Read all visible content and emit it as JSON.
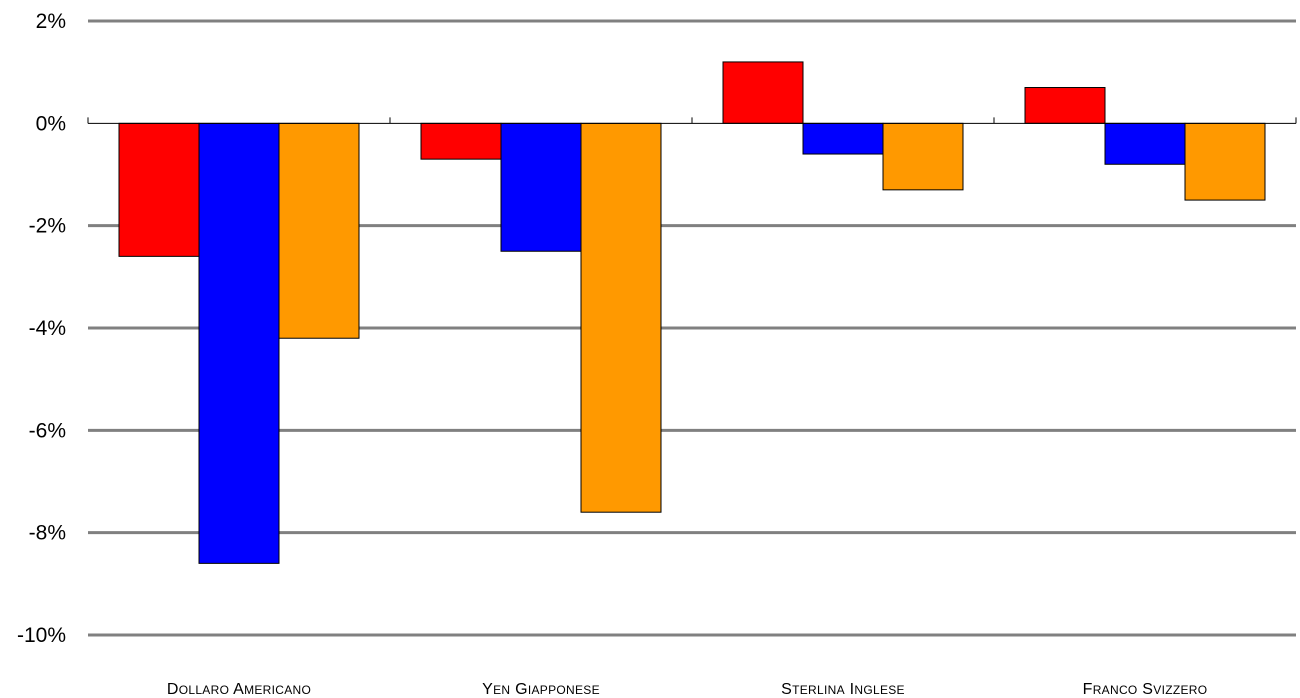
{
  "chart_data": {
    "type": "bar",
    "title": "",
    "xlabel": "",
    "ylabel": "",
    "categories": [
      "Dollaro Americano",
      "Yen Giapponese",
      "Sterlina Inglese",
      "Franco Svizzero"
    ],
    "series": [
      {
        "color": "#ff0000",
        "values": [
          -2.6,
          -0.7,
          1.2,
          0.7
        ]
      },
      {
        "color": "#0000ff",
        "values": [
          -8.6,
          -2.5,
          -0.6,
          -0.8
        ]
      },
      {
        "color": "#ff9900",
        "values": [
          -4.2,
          -7.6,
          -1.3,
          -1.5
        ]
      }
    ],
    "ylim": [
      -10,
      2
    ],
    "yticks": [
      2,
      0,
      -2,
      -4,
      -6,
      -8,
      -10
    ],
    "ytick_labels": [
      "2%",
      "0%",
      "-2%",
      "-4%",
      "-6%",
      "-8%",
      "-10%"
    ],
    "grid": true,
    "legend": "none",
    "x_label_style": "small-caps"
  }
}
